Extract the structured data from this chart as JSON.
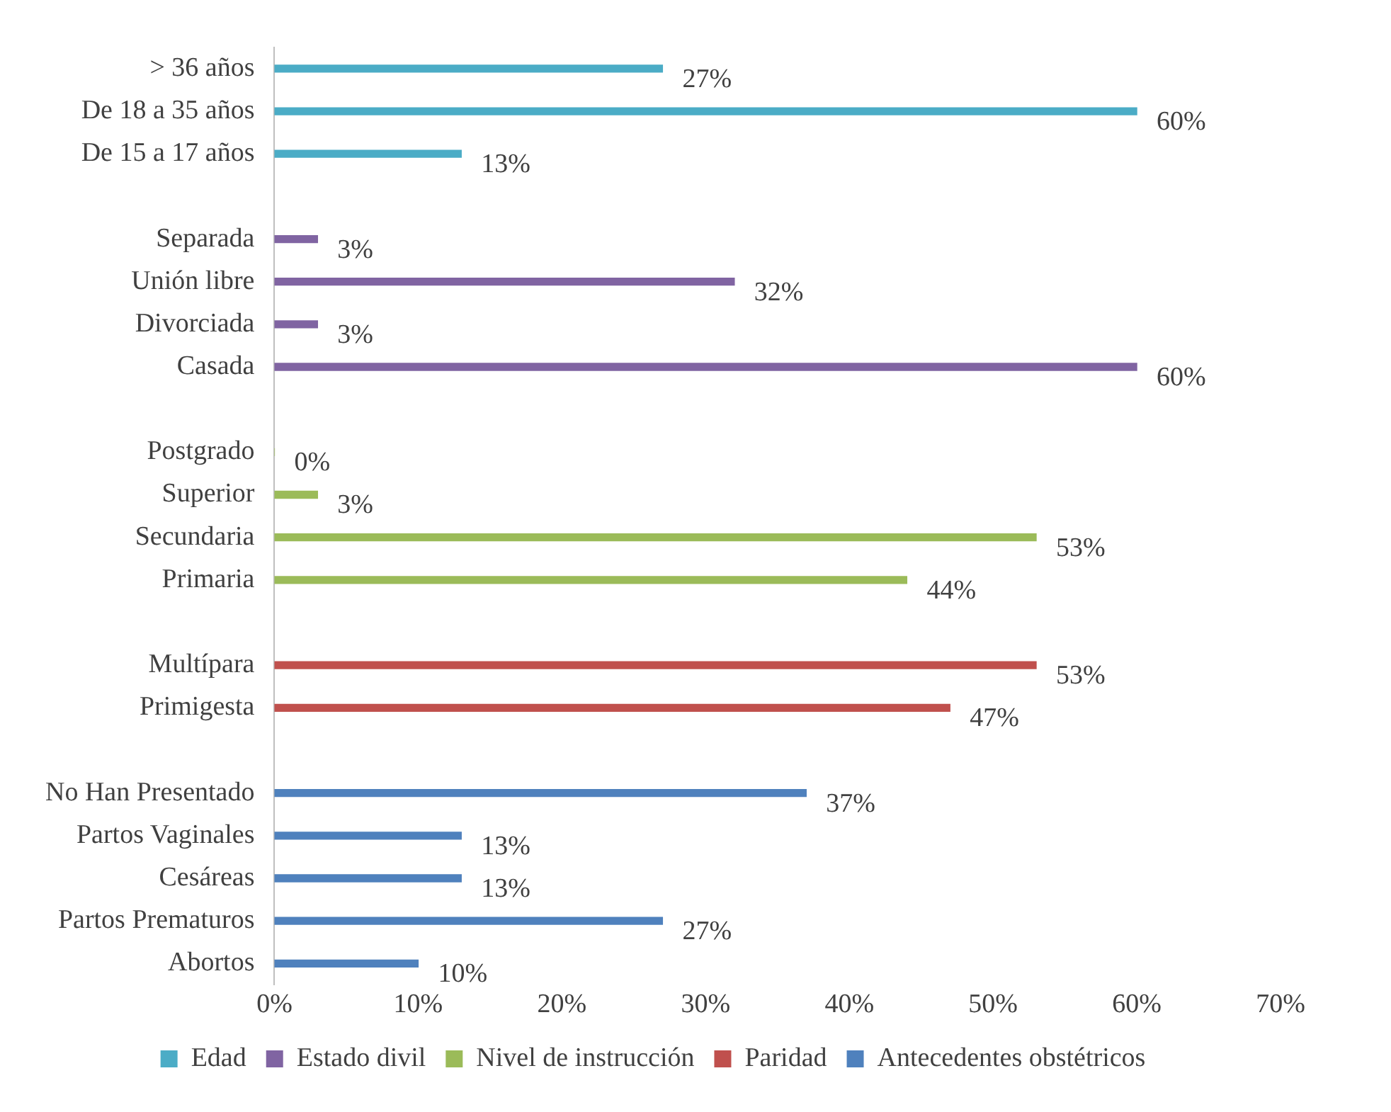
{
  "chart_data": {
    "type": "bar",
    "orientation": "horizontal",
    "categories": [
      "> 36 años",
      "De 18 a 35 años",
      "De 15 a 17 años",
      null,
      "Separada",
      "Unión libre",
      "Divorciada",
      "Casada",
      null,
      "Postgrado",
      "Superior",
      "Secundaria",
      "Primaria",
      null,
      "Multípara",
      "Primigesta",
      null,
      "No Han Presentado",
      "Partos Vaginales",
      "Cesáreas",
      "Partos Prematuros",
      "Abortos"
    ],
    "series": [
      {
        "name": "Edad",
        "color": "#4bacc6",
        "values": [
          27,
          60,
          13,
          null,
          null,
          null,
          null,
          null,
          null,
          null,
          null,
          null,
          null,
          null,
          null,
          null,
          null,
          null,
          null,
          null,
          null,
          null
        ],
        "value_labels": [
          "27%",
          "60%",
          "13%",
          null,
          null,
          null,
          null,
          null,
          null,
          null,
          null,
          null,
          null,
          null,
          null,
          null,
          null,
          null,
          null,
          null,
          null,
          null
        ]
      },
      {
        "name": "Estado divil",
        "color": "#8064a2",
        "values": [
          null,
          null,
          null,
          null,
          3,
          32,
          3,
          60,
          null,
          null,
          null,
          null,
          null,
          null,
          null,
          null,
          null,
          null,
          null,
          null,
          null,
          null
        ],
        "value_labels": [
          null,
          null,
          null,
          null,
          "3%",
          "32%",
          "3%",
          "60%",
          null,
          null,
          null,
          null,
          null,
          null,
          null,
          null,
          null,
          null,
          null,
          null,
          null,
          null
        ]
      },
      {
        "name": "Nivel de instrucción",
        "color": "#9bbb59",
        "values": [
          null,
          null,
          null,
          null,
          null,
          null,
          null,
          null,
          null,
          0,
          3,
          53,
          44,
          null,
          null,
          null,
          null,
          null,
          null,
          null,
          null,
          null
        ],
        "value_labels": [
          null,
          null,
          null,
          null,
          null,
          null,
          null,
          null,
          null,
          "0%",
          "3%",
          "53%",
          "44%",
          null,
          null,
          null,
          null,
          null,
          null,
          null,
          null,
          null
        ]
      },
      {
        "name": "Paridad",
        "color": "#c0504d",
        "values": [
          null,
          null,
          null,
          null,
          null,
          null,
          null,
          null,
          null,
          null,
          null,
          null,
          null,
          null,
          53,
          47,
          null,
          null,
          null,
          null,
          null,
          null
        ],
        "value_labels": [
          null,
          null,
          null,
          null,
          null,
          null,
          null,
          null,
          null,
          null,
          null,
          null,
          null,
          null,
          "53%",
          "47%",
          null,
          null,
          null,
          null,
          null,
          null
        ]
      },
      {
        "name": "Antecedentes obstétricos",
        "color": "#4f81bd",
        "values": [
          null,
          null,
          null,
          null,
          null,
          null,
          null,
          null,
          null,
          null,
          null,
          null,
          null,
          null,
          null,
          null,
          null,
          37,
          13,
          13,
          27,
          10
        ],
        "value_labels": [
          null,
          null,
          null,
          null,
          null,
          null,
          null,
          null,
          null,
          null,
          null,
          null,
          null,
          null,
          null,
          null,
          null,
          "37%",
          "13%",
          "13%",
          "27%",
          "10%"
        ]
      }
    ],
    "xlim": [
      0,
      70
    ],
    "xticks": [
      {
        "value": 0,
        "label": "0%"
      },
      {
        "value": 10,
        "label": "10%"
      },
      {
        "value": 20,
        "label": "20%"
      },
      {
        "value": 30,
        "label": "30%"
      },
      {
        "value": 40,
        "label": "40%"
      },
      {
        "value": 50,
        "label": "50%"
      },
      {
        "value": 60,
        "label": "60%"
      },
      {
        "value": 70,
        "label": "70%"
      }
    ],
    "grid": false,
    "legend": "bottom"
  }
}
